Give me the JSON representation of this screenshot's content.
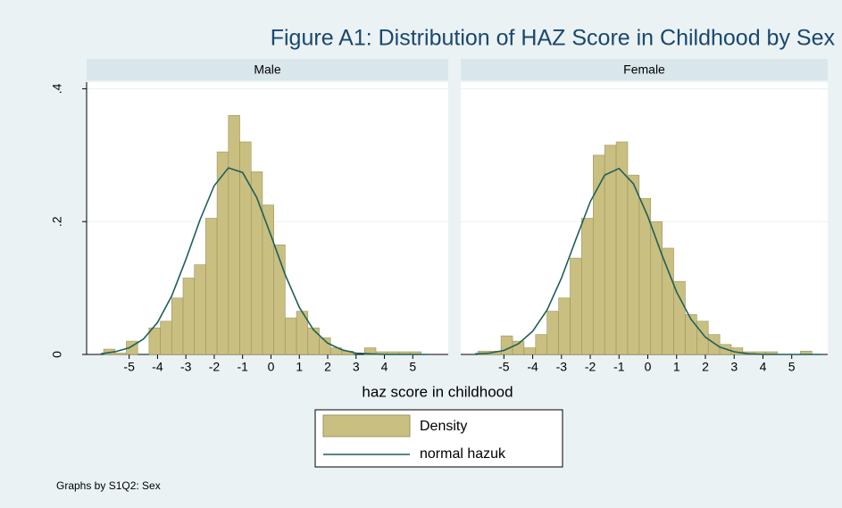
{
  "title": "Figure A1: Distribution of HAZ Score in Childhood by Sex",
  "x_label": "haz score in childhood",
  "note": "Graphs by S1Q2: Sex",
  "chart_data": [
    {
      "type": "histogram",
      "title": "Male",
      "xlim": [
        -6.5,
        6.25
      ],
      "ylim": [
        0,
        0.41
      ],
      "xticks": [
        -5,
        -4,
        -3,
        -2,
        -1,
        0,
        1,
        2,
        3,
        4,
        5
      ],
      "yticks": [
        0,
        {
          "value": 0.2,
          "label": ".2"
        },
        {
          "value": 0.4,
          "label": ".4"
        }
      ],
      "grid": true,
      "series": [
        {
          "name": "Density",
          "color": "#c9bf80",
          "bins": [
            -5.9,
            -5.5,
            -5.1,
            -4.7,
            -4.3,
            -3.9,
            -3.5,
            -3.1,
            -2.7,
            -2.3,
            -1.9,
            -1.5,
            -1.1,
            -0.7,
            -0.3,
            0.1,
            0.5,
            0.9,
            1.3,
            1.7,
            2.1,
            2.5,
            2.9,
            3.3,
            3.7,
            4.1,
            4.5,
            4.9,
            5.3
          ],
          "values": [
            0.008,
            0.002,
            0.02,
            0,
            0.04,
            0.05,
            0.085,
            0.115,
            0.135,
            0.205,
            0.305,
            0.36,
            0.32,
            0.275,
            0.225,
            0.165,
            0.055,
            0.065,
            0.04,
            0.025,
            0.01,
            0.005,
            0,
            0.01,
            0.004,
            0.004,
            0.004,
            0.004
          ]
        },
        {
          "name": "normal hazuk",
          "color": "#1f5f5b",
          "x": [
            -6,
            -5.5,
            -5,
            -4.5,
            -4,
            -3.5,
            -3,
            -2.5,
            -2,
            -1.5,
            -1,
            -0.5,
            0,
            0.5,
            1,
            1.5,
            2,
            2.5,
            3,
            3.5,
            4,
            4.5,
            5,
            5.5
          ],
          "values": [
            0.001,
            0.004,
            0.01,
            0.023,
            0.048,
            0.088,
            0.143,
            0.203,
            0.254,
            0.281,
            0.274,
            0.236,
            0.179,
            0.12,
            0.071,
            0.037,
            0.017,
            0.007,
            0.002,
            0.001,
            0,
            0,
            0,
            0
          ]
        }
      ]
    },
    {
      "type": "histogram",
      "title": "Female",
      "xlim": [
        -6.5,
        6.25
      ],
      "ylim": [
        0,
        0.41
      ],
      "xticks": [
        -5,
        -4,
        -3,
        -2,
        -1,
        0,
        1,
        2,
        3,
        4,
        5
      ],
      "yticks": [
        0,
        {
          "value": 0.2,
          "label": ".2"
        },
        {
          "value": 0.4,
          "label": ".4"
        }
      ],
      "grid": true,
      "series": [
        {
          "name": "Density",
          "color": "#c9bf80",
          "bins": [
            -5.9,
            -5.5,
            -5.1,
            -4.7,
            -4.3,
            -3.9,
            -3.5,
            -3.1,
            -2.7,
            -2.3,
            -1.9,
            -1.5,
            -1.1,
            -0.7,
            -0.3,
            0.1,
            0.5,
            0.9,
            1.3,
            1.7,
            2.1,
            2.5,
            2.9,
            3.3,
            3.7,
            4.1,
            4.5,
            4.9,
            5.3,
            5.7
          ],
          "values": [
            0.005,
            0.005,
            0.028,
            0.02,
            0.01,
            0.03,
            0.065,
            0.085,
            0.145,
            0.205,
            0.3,
            0.315,
            0.32,
            0.27,
            0.235,
            0.2,
            0.16,
            0.11,
            0.06,
            0.05,
            0.03,
            0.015,
            0.01,
            0.004,
            0.004,
            0.004,
            0,
            0,
            0.005
          ]
        },
        {
          "name": "normal hazuk",
          "color": "#1f5f5b",
          "x": [
            -6,
            -5.5,
            -5,
            -4.5,
            -4,
            -3.5,
            -3,
            -2.5,
            -2,
            -1.5,
            -1,
            -0.5,
            0,
            0.5,
            1,
            1.5,
            2,
            2.5,
            3,
            3.5,
            4,
            4.5,
            5,
            5.5,
            6
          ],
          "values": [
            0.001,
            0.002,
            0.006,
            0.016,
            0.035,
            0.067,
            0.115,
            0.173,
            0.23,
            0.27,
            0.28,
            0.257,
            0.208,
            0.149,
            0.094,
            0.053,
            0.026,
            0.011,
            0.004,
            0.001,
            0,
            0,
            0,
            0,
            0
          ]
        }
      ]
    }
  ]
}
